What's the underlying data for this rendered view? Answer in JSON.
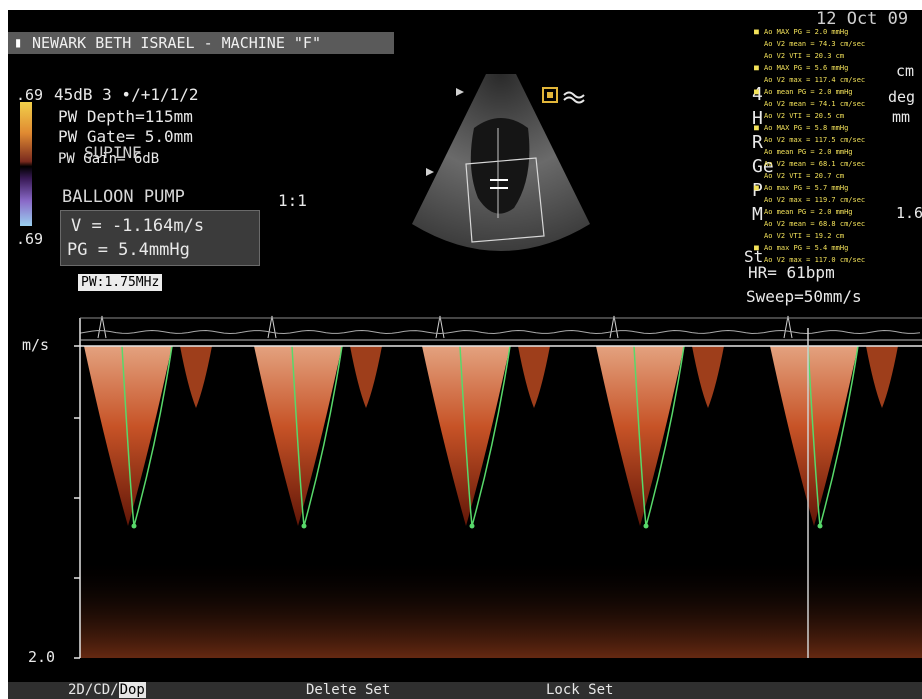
{
  "header": {
    "hospital": "NEWARK BETH ISRAEL - MACHINE \"F\"",
    "date": "12 Oct 09"
  },
  "scale": {
    "top": ".69",
    "bottom": ".69"
  },
  "settings": {
    "line1": "45dB  3 •/+1/1/2",
    "depth": "PW Depth=115mm",
    "gate": "PW Gate= 5.0mm",
    "gain": "PW Gain= 6dB",
    "annotation_supine": "SUPINE",
    "annotation_balloon": "BALLOON PUMP",
    "ratio": "1:1"
  },
  "measurement": {
    "velocity": "V = -1.164m/s",
    "gradient": "PG = 5.4mmHg"
  },
  "probe": {
    "frequency": "PW:1.75MHz"
  },
  "vitals": {
    "hr": "HR= 61bpm",
    "sweep": "Sweep=50mm/s"
  },
  "right_partial": {
    "a": "4",
    "b": "H",
    "c": "R",
    "d": "Ge",
    "e": "P",
    "f": "M",
    "g": "St",
    "cm": "cm",
    "deg": "deg",
    "mm": "mm",
    "val": "1.6"
  },
  "measurements_list": [
    "Ao MAX PG = 2.0 mmHg",
    "Ao V2 mean = 74.3 cm/sec",
    "Ao V2 VTI = 20.3 cm",
    "Ao MAX PG = 5.6 mmHg",
    "Ao V2 max = 117.4 cm/sec",
    "Ao mean PG = 2.0 mmHg",
    "Ao V2 mean = 74.1 cm/sec",
    "Ao V2 VTI = 20.5 cm",
    "Ao MAX PG = 5.8 mmHg",
    "Ao V2 max = 117.5 cm/sec",
    "Ao mean PG = 2.0 mmHg",
    "Ao V2 mean = 68.1 cm/sec",
    "Ao V2 VTI = 20.7 cm",
    "Ao max PG = 5.7 mmHg",
    "Ao V2 max = 119.7 cm/sec",
    "Ao mean PG = 2.0 mmHg",
    "Ao V2 mean = 68.8 cm/sec",
    "Ao V2 VTI = 19.2 cm",
    "Ao max PG = 5.4 mmHg",
    "Ao V2 max = 117.0 cm/sec"
  ],
  "axis": {
    "unit": "m/s",
    "bottom": "2.0"
  },
  "menu": {
    "mode_prefix": "2D/CD/",
    "mode_active": "Dop",
    "delete": "Delete Set",
    "lock": "Lock Set"
  },
  "colors": {
    "background": "#000000",
    "doppler": "#e0703c",
    "trace": "#58d86a",
    "measurement_text": "#f3e25a"
  }
}
